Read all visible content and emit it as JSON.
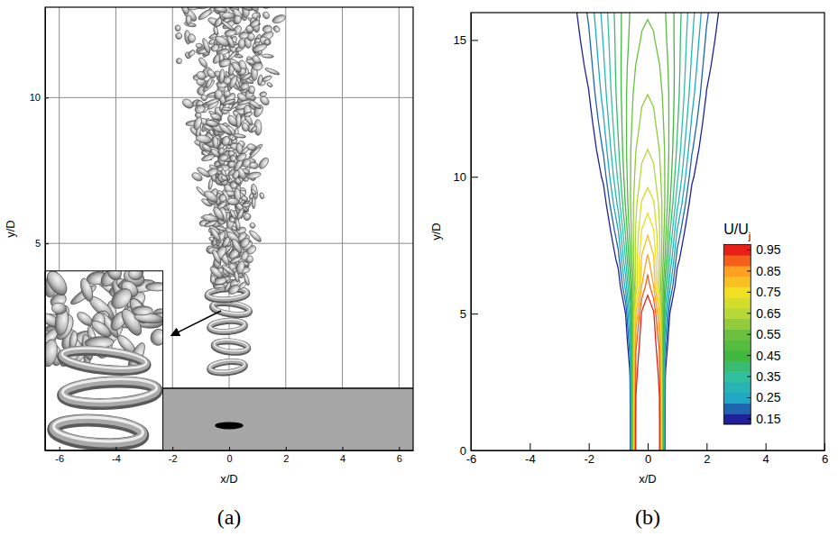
{
  "chart_data": [
    {
      "type": "image",
      "title": "(a)",
      "x_label": "x/D",
      "y_label": "y/D",
      "xlim": [
        -6.5,
        6.5
      ],
      "ylim": [
        -2.1,
        13.1
      ],
      "xticks": [
        -6,
        -4,
        -2,
        0,
        2,
        4,
        6
      ],
      "yticks": [
        5,
        10
      ],
      "grid": true
    },
    {
      "type": "contour",
      "title": "(b)",
      "x_label": "x/D",
      "y_label": "y/D",
      "xlim": [
        -6,
        6
      ],
      "ylim": [
        0,
        16
      ],
      "xticks": [
        -6,
        -4,
        -2,
        0,
        2,
        4,
        6
      ],
      "yticks": [
        0,
        5,
        10,
        15
      ],
      "levels": [
        0.15,
        0.2,
        0.25,
        0.3,
        0.35,
        0.4,
        0.45,
        0.5,
        0.55,
        0.6,
        0.65,
        0.7,
        0.75,
        0.8,
        0.85,
        0.9,
        0.95
      ],
      "x": [
        -3,
        -2,
        -1.5,
        -1,
        -0.75,
        -0.6,
        -0.5,
        -0.4,
        -0.2,
        0,
        0.2,
        0.4,
        0.5,
        0.6,
        0.75,
        1,
        1.5,
        2,
        3
      ],
      "y": [
        -0.5,
        1,
        3,
        4,
        5,
        6,
        7,
        8,
        9,
        10,
        11,
        12,
        13,
        14,
        15,
        16.5
      ],
      "values": [
        [
          0,
          0,
          0,
          0,
          0.02,
          0.1,
          0.55,
          0.97,
          1,
          1,
          1,
          0.97,
          0.55,
          0.1,
          0.02,
          0,
          0,
          0,
          0
        ],
        [
          0,
          0,
          0,
          0,
          0.02,
          0.1,
          0.55,
          0.97,
          1,
          1,
          1,
          0.97,
          0.55,
          0.1,
          0.02,
          0,
          0,
          0,
          0
        ],
        [
          0,
          0,
          0,
          0,
          0.04,
          0.16,
          0.55,
          0.93,
          1,
          1,
          1,
          0.93,
          0.55,
          0.16,
          0.04,
          0,
          0,
          0,
          0
        ],
        [
          0,
          0,
          0,
          0.01,
          0.08,
          0.25,
          0.55,
          0.88,
          0.99,
          1,
          0.99,
          0.88,
          0.55,
          0.25,
          0.08,
          0.01,
          0,
          0,
          0
        ],
        [
          0,
          0,
          0,
          0.04,
          0.15,
          0.33,
          0.55,
          0.8,
          0.96,
          0.99,
          0.96,
          0.8,
          0.55,
          0.33,
          0.15,
          0.04,
          0,
          0,
          0
        ],
        [
          0,
          0,
          0.006,
          0.102,
          0.268,
          0.419,
          0.535,
          0.653,
          0.851,
          0.93,
          0.851,
          0.653,
          0.535,
          0.419,
          0.268,
          0.102,
          0.006,
          0,
          0
        ],
        [
          0,
          0.001,
          0.024,
          0.175,
          0.351,
          0.485,
          0.578,
          0.667,
          0.807,
          0.86,
          0.807,
          0.667,
          0.578,
          0.485,
          0.351,
          0.175,
          0.024,
          0.001,
          0
        ],
        [
          0,
          0.007,
          0.057,
          0.246,
          0.409,
          0.518,
          0.59,
          0.655,
          0.754,
          0.79,
          0.754,
          0.655,
          0.59,
          0.518,
          0.409,
          0.246,
          0.057,
          0.007,
          0
        ],
        [
          0,
          0.026,
          0.111,
          0.316,
          0.456,
          0.54,
          0.592,
          0.639,
          0.706,
          0.73,
          0.706,
          0.639,
          0.592,
          0.54,
          0.456,
          0.316,
          0.111,
          0.026,
          0
        ],
        [
          0.002,
          0.055,
          0.165,
          0.363,
          0.477,
          0.542,
          0.581,
          0.615,
          0.663,
          0.68,
          0.663,
          0.615,
          0.581,
          0.542,
          0.477,
          0.363,
          0.165,
          0.055,
          0.002
        ],
        [
          0.007,
          0.086,
          0.208,
          0.392,
          0.489,
          0.542,
          0.572,
          0.599,
          0.637,
          0.65,
          0.637,
          0.599,
          0.572,
          0.542,
          0.489,
          0.392,
          0.208,
          0.086,
          0.007
        ],
        [
          0.015,
          0.117,
          0.243,
          0.409,
          0.491,
          0.534,
          0.559,
          0.58,
          0.61,
          0.62,
          0.61,
          0.58,
          0.559,
          0.534,
          0.491,
          0.409,
          0.243,
          0.117,
          0.015
        ],
        [
          0.025,
          0.146,
          0.271,
          0.421,
          0.492,
          0.528,
          0.549,
          0.567,
          0.592,
          0.6,
          0.592,
          0.567,
          0.549,
          0.528,
          0.492,
          0.421,
          0.271,
          0.146,
          0.025
        ],
        [
          0.036,
          0.169,
          0.29,
          0.426,
          0.488,
          0.519,
          0.537,
          0.552,
          0.573,
          0.58,
          0.573,
          0.552,
          0.537,
          0.519,
          0.488,
          0.426,
          0.29,
          0.169,
          0.036
        ],
        [
          0.049,
          0.19,
          0.305,
          0.427,
          0.481,
          0.508,
          0.523,
          0.536,
          0.554,
          0.56,
          0.554,
          0.536,
          0.523,
          0.508,
          0.481,
          0.427,
          0.305,
          0.19,
          0.049
        ],
        [
          0.07,
          0.219,
          0.325,
          0.431,
          0.475,
          0.498,
          0.51,
          0.521,
          0.535,
          0.54,
          0.535,
          0.521,
          0.51,
          0.498,
          0.475,
          0.431,
          0.325,
          0.219,
          0.07
        ]
      ],
      "colorbar": {
        "title": "U/Uj",
        "range": [
          0.125,
          0.975
        ],
        "ticks": [
          0.15,
          0.25,
          0.35,
          0.45,
          0.55,
          0.65,
          0.75,
          0.85,
          0.95
        ]
      }
    }
  ]
}
